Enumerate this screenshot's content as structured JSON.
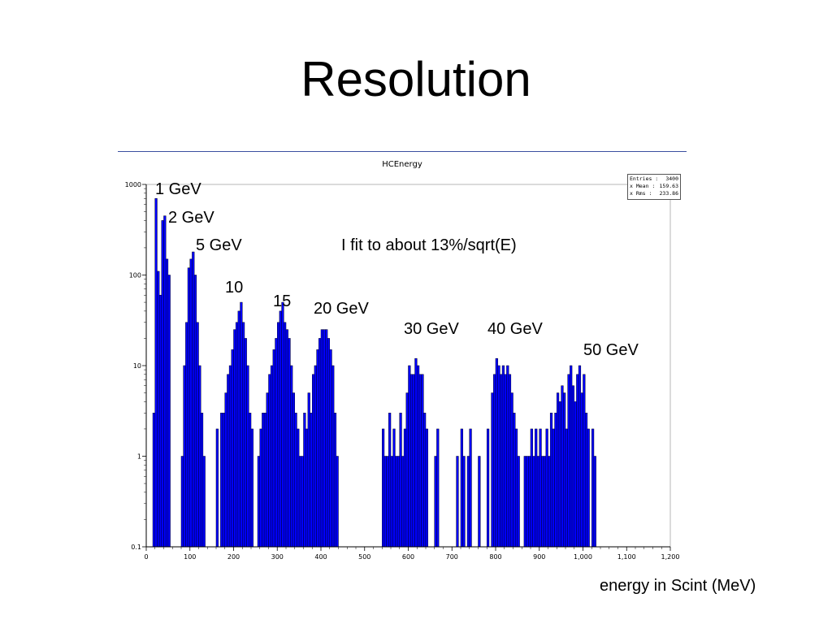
{
  "slide": {
    "title": "Resolution",
    "x_unit_caption": "energy in Scint (MeV)"
  },
  "stats": {
    "entries_label": "Entries :",
    "entries_value": "3400",
    "mean_label": "x Mean :",
    "mean_value": "159.63",
    "rms_label": "x Rms :",
    "rms_value": "233.86"
  },
  "annotations": {
    "e1": "1 GeV",
    "e2": "2 GeV",
    "e5": "5 GeV",
    "e10": "10",
    "e15": "15",
    "e20": "20 GeV",
    "e30": "30 GeV",
    "e40": "40 GeV",
    "e50": "50 GeV",
    "fit_note": "I fit to about 13%/sqrt(E)"
  },
  "chart_data": {
    "type": "bar",
    "title": "HCEnergy",
    "xlabel": "",
    "ylabel": "",
    "xlim": [
      0,
      1200
    ],
    "ylim": [
      0.1,
      1000
    ],
    "y_scale": "log",
    "bin_width": 5,
    "grid": false,
    "bar_color": "#0000ff",
    "x_ticks": [
      {
        "value": 0,
        "label": "0"
      },
      {
        "value": 100,
        "label": "100"
      },
      {
        "value": 200,
        "label": "200"
      },
      {
        "value": 300,
        "label": "300"
      },
      {
        "value": 400,
        "label": "400"
      },
      {
        "value": 500,
        "label": "500"
      },
      {
        "value": 600,
        "label": "600"
      },
      {
        "value": 700,
        "label": "700"
      },
      {
        "value": 800,
        "label": "800"
      },
      {
        "value": 900,
        "label": "900"
      },
      {
        "value": 1000,
        "label": "1,000"
      },
      {
        "value": 1100,
        "label": "1,100"
      },
      {
        "value": 1200,
        "label": "1,200"
      }
    ],
    "y_ticks": [
      {
        "value": 0.1,
        "label": "0.1"
      },
      {
        "value": 1,
        "label": "1"
      },
      {
        "value": 10,
        "label": "10"
      },
      {
        "value": 100,
        "label": "100"
      },
      {
        "value": 1000,
        "label": "1000"
      }
    ],
    "bins": [
      [
        15,
        3
      ],
      [
        20,
        700
      ],
      [
        25,
        110
      ],
      [
        30,
        60
      ],
      [
        35,
        400
      ],
      [
        40,
        450
      ],
      [
        45,
        150
      ],
      [
        50,
        100
      ],
      [
        80,
        1
      ],
      [
        85,
        10
      ],
      [
        90,
        30
      ],
      [
        95,
        120
      ],
      [
        100,
        150
      ],
      [
        105,
        180
      ],
      [
        110,
        100
      ],
      [
        115,
        30
      ],
      [
        120,
        10
      ],
      [
        125,
        3
      ],
      [
        130,
        1
      ],
      [
        160,
        2
      ],
      [
        170,
        3
      ],
      [
        175,
        3
      ],
      [
        180,
        5
      ],
      [
        185,
        8
      ],
      [
        190,
        10
      ],
      [
        195,
        15
      ],
      [
        200,
        25
      ],
      [
        205,
        30
      ],
      [
        210,
        40
      ],
      [
        215,
        50
      ],
      [
        220,
        30
      ],
      [
        225,
        20
      ],
      [
        230,
        10
      ],
      [
        235,
        3
      ],
      [
        240,
        2
      ],
      [
        255,
        1
      ],
      [
        260,
        2
      ],
      [
        265,
        3
      ],
      [
        270,
        3
      ],
      [
        275,
        5
      ],
      [
        280,
        8
      ],
      [
        285,
        10
      ],
      [
        290,
        15
      ],
      [
        295,
        20
      ],
      [
        300,
        30
      ],
      [
        305,
        40
      ],
      [
        310,
        50
      ],
      [
        315,
        30
      ],
      [
        320,
        25
      ],
      [
        325,
        20
      ],
      [
        330,
        10
      ],
      [
        335,
        5
      ],
      [
        340,
        3
      ],
      [
        345,
        2
      ],
      [
        350,
        1
      ],
      [
        355,
        1
      ],
      [
        360,
        3
      ],
      [
        365,
        2
      ],
      [
        370,
        5
      ],
      [
        375,
        3
      ],
      [
        380,
        8
      ],
      [
        385,
        10
      ],
      [
        390,
        15
      ],
      [
        395,
        20
      ],
      [
        400,
        25
      ],
      [
        405,
        25
      ],
      [
        410,
        25
      ],
      [
        415,
        20
      ],
      [
        420,
        15
      ],
      [
        425,
        10
      ],
      [
        430,
        3
      ],
      [
        435,
        1
      ],
      [
        540,
        2
      ],
      [
        545,
        1
      ],
      [
        550,
        1
      ],
      [
        555,
        3
      ],
      [
        560,
        1
      ],
      [
        565,
        2
      ],
      [
        570,
        1
      ],
      [
        575,
        1
      ],
      [
        580,
        3
      ],
      [
        585,
        1
      ],
      [
        590,
        2
      ],
      [
        595,
        5
      ],
      [
        600,
        10
      ],
      [
        605,
        8
      ],
      [
        610,
        8
      ],
      [
        615,
        12
      ],
      [
        620,
        10
      ],
      [
        625,
        8
      ],
      [
        630,
        8
      ],
      [
        635,
        3
      ],
      [
        640,
        2
      ],
      [
        660,
        1
      ],
      [
        665,
        2
      ],
      [
        710,
        1
      ],
      [
        720,
        2
      ],
      [
        725,
        1
      ],
      [
        735,
        1
      ],
      [
        740,
        2
      ],
      [
        760,
        1
      ],
      [
        780,
        2
      ],
      [
        790,
        5
      ],
      [
        795,
        8
      ],
      [
        800,
        12
      ],
      [
        805,
        10
      ],
      [
        810,
        8
      ],
      [
        815,
        10
      ],
      [
        820,
        8
      ],
      [
        825,
        10
      ],
      [
        830,
        8
      ],
      [
        835,
        5
      ],
      [
        840,
        3
      ],
      [
        845,
        2
      ],
      [
        850,
        1
      ],
      [
        865,
        1
      ],
      [
        870,
        1
      ],
      [
        875,
        1
      ],
      [
        880,
        2
      ],
      [
        885,
        1
      ],
      [
        890,
        2
      ],
      [
        895,
        1
      ],
      [
        900,
        2
      ],
      [
        905,
        1
      ],
      [
        910,
        1
      ],
      [
        915,
        2
      ],
      [
        920,
        1
      ],
      [
        925,
        3
      ],
      [
        930,
        2
      ],
      [
        935,
        3
      ],
      [
        940,
        5
      ],
      [
        945,
        4
      ],
      [
        950,
        6
      ],
      [
        955,
        5
      ],
      [
        960,
        2
      ],
      [
        965,
        8
      ],
      [
        970,
        10
      ],
      [
        975,
        6
      ],
      [
        980,
        4
      ],
      [
        985,
        8
      ],
      [
        990,
        10
      ],
      [
        995,
        5
      ],
      [
        1000,
        8
      ],
      [
        1005,
        3
      ],
      [
        1010,
        2
      ],
      [
        1020,
        2
      ],
      [
        1025,
        1
      ]
    ]
  }
}
